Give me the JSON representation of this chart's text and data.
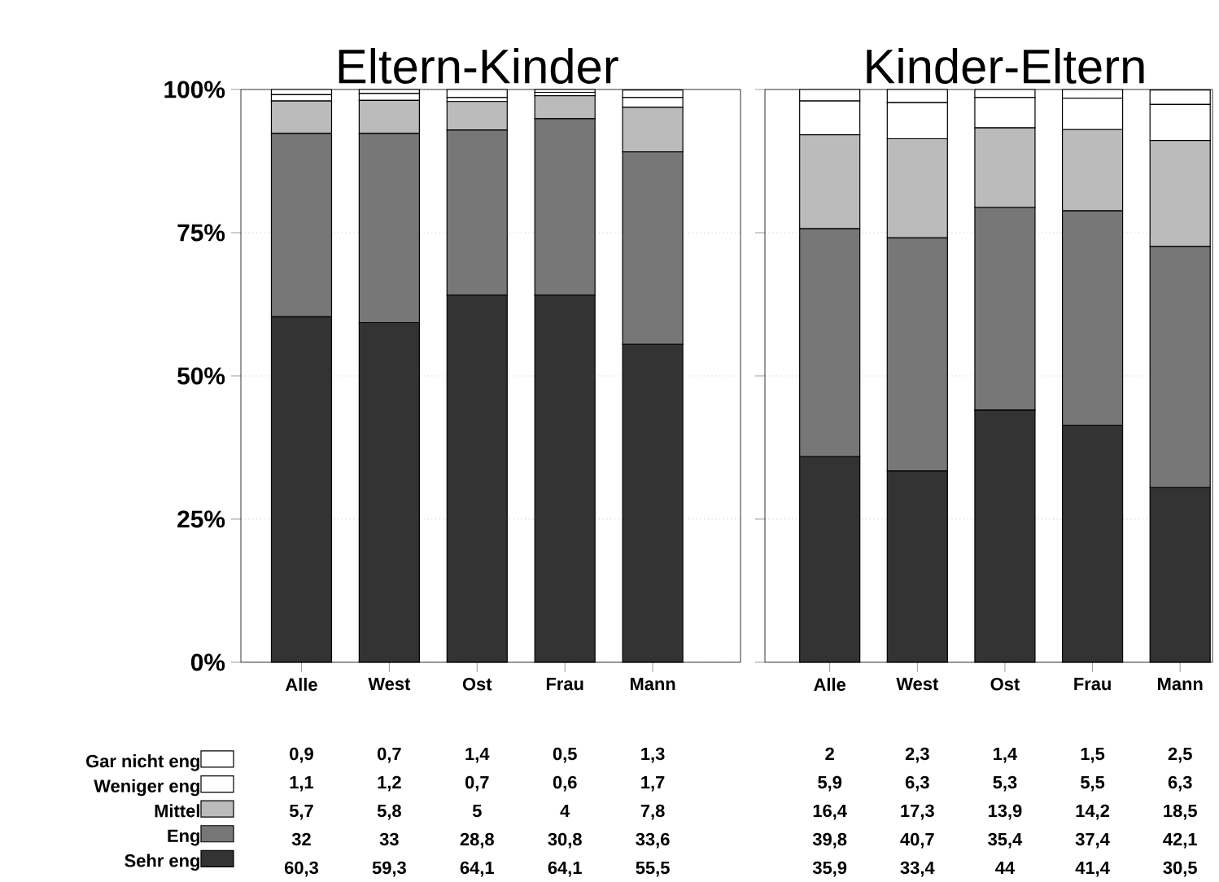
{
  "chart_data": [
    {
      "type": "bar",
      "title": "Eltern-Kinder",
      "stacked": true,
      "categories": [
        "Alle",
        "West",
        "Ost",
        "Frau",
        "Mann"
      ],
      "ylim": [
        0,
        100
      ],
      "yticks": [
        {
          "value": 0,
          "label": "0%"
        },
        {
          "value": 25,
          "label": "25%"
        },
        {
          "value": 50,
          "label": "50%"
        },
        {
          "value": 75,
          "label": "75%"
        },
        {
          "value": 100,
          "label": "100%"
        }
      ],
      "grid": "y",
      "legend": "bottom left",
      "series": [
        {
          "name": "Sehr eng",
          "color": "#333333",
          "values": [
            60.3,
            59.3,
            64.1,
            64.1,
            55.5
          ],
          "value_labels": [
            "60,3",
            "59,3",
            "64,1",
            "64,1",
            "55,5"
          ]
        },
        {
          "name": "Eng",
          "color": "#777777",
          "values": [
            32,
            33,
            28.8,
            30.8,
            33.6
          ],
          "value_labels": [
            "32",
            "33",
            "28,8",
            "30,8",
            "33,6"
          ]
        },
        {
          "name": "Mittel",
          "color": "#bbbbbb",
          "values": [
            5.7,
            5.8,
            5,
            4,
            7.8
          ],
          "value_labels": [
            "5,7",
            "5,8",
            "5",
            "4",
            "7,8"
          ]
        },
        {
          "name": "Weniger eng",
          "color": "#ffffff",
          "values": [
            1.1,
            1.2,
            0.7,
            0.6,
            1.7
          ],
          "value_labels": [
            "1,1",
            "1,2",
            "0,7",
            "0,6",
            "1,7"
          ]
        },
        {
          "name": "Gar nicht eng",
          "color": "#ffffff",
          "values": [
            0.9,
            0.7,
            1.4,
            0.5,
            1.3
          ],
          "value_labels": [
            "0,9",
            "0,7",
            "1,4",
            "0,5",
            "1,3"
          ]
        }
      ]
    },
    {
      "type": "bar",
      "title": "Kinder-Eltern",
      "stacked": true,
      "categories": [
        "Alle",
        "West",
        "Ost",
        "Frau",
        "Mann"
      ],
      "ylim": [
        0,
        100
      ],
      "yticks": [
        {
          "value": 0,
          "label": null
        },
        {
          "value": 25,
          "label": null
        },
        {
          "value": 50,
          "label": null
        },
        {
          "value": 75,
          "label": null
        },
        {
          "value": 100,
          "label": null
        }
      ],
      "grid": "y",
      "tick_labels": "x",
      "series": [
        {
          "color": "#333333",
          "values": [
            35.9,
            33.4,
            44,
            41.4,
            30.5
          ],
          "value_labels": [
            "35,9",
            "33,4",
            "44",
            "41,4",
            "30,5"
          ]
        },
        {
          "color": "#777777",
          "values": [
            39.8,
            40.7,
            35.4,
            37.4,
            42.1
          ],
          "value_labels": [
            "39,8",
            "40,7",
            "35,4",
            "37,4",
            "42,1"
          ]
        },
        {
          "color": "#bbbbbb",
          "values": [
            16.4,
            17.3,
            13.9,
            14.2,
            18.5
          ],
          "value_labels": [
            "16,4",
            "17,3",
            "13,9",
            "14,2",
            "18,5"
          ]
        },
        {
          "color": "#ffffff",
          "values": [
            5.9,
            6.3,
            5.3,
            5.5,
            6.3
          ],
          "value_labels": [
            "5,9",
            "6,3",
            "5,3",
            "5,5",
            "6,3"
          ]
        },
        {
          "color": "#ffffff",
          "values": [
            2,
            2.3,
            1.4,
            1.5,
            2.5
          ],
          "value_labels": [
            "2",
            "2,3",
            "1,4",
            "1,5",
            "2,5"
          ]
        }
      ]
    }
  ]
}
